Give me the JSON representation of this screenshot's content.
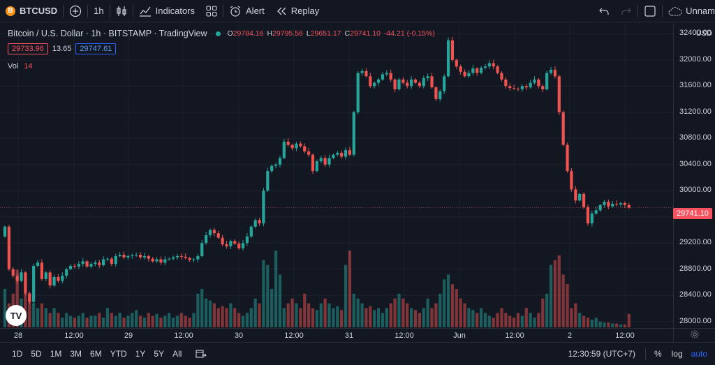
{
  "toolbar": {
    "symbol": "BTCUSD",
    "symbol_icon": "B",
    "interval": "1h",
    "indicators_label": "Indicators",
    "alert_label": "Alert",
    "replay_label": "Replay",
    "layout_name": "Unnam"
  },
  "legend": {
    "title": "Bitcoin / U.S. Dollar · 1h · BITSTAMP · TradingView",
    "o_key": "O",
    "o_val": "29784.16",
    "h_key": "H",
    "h_val": "29795.56",
    "l_key": "L",
    "l_val": "29651.17",
    "c_key": "C",
    "c_val": "29741.10",
    "change": "-44.21 (-0.15%)",
    "bid": "29733.96",
    "spread": "13.65",
    "ask": "29747.61",
    "vol_label": "Vol",
    "vol_value": "14"
  },
  "price_scale": {
    "currency": "USD",
    "ticks": [
      "32400.00",
      "32000.00",
      "31600.00",
      "31200.00",
      "30800.00",
      "30400.00",
      "30000.00",
      "29600.00",
      "29200.00",
      "28800.00",
      "28400.00",
      "28000.00"
    ],
    "current_price": "29741.10"
  },
  "time_scale": {
    "labels": [
      "28",
      "12:00",
      "29",
      "12:00",
      "30",
      "12:00",
      "31",
      "12:00",
      "Jun",
      "12:00",
      "2",
      "12:00"
    ]
  },
  "bottom_bar": {
    "ranges": [
      "1D",
      "5D",
      "1M",
      "3M",
      "6M",
      "YTD",
      "1Y",
      "5Y",
      "All"
    ],
    "clock": "12:30:59 (UTC+7)",
    "percent_label": "%",
    "log_label": "log",
    "auto_label": "auto"
  },
  "colors": {
    "up": "#26a69a",
    "down": "#ef5350",
    "background": "#131722",
    "grid": "#1e222d"
  },
  "chart_data": {
    "type": "candlestick",
    "x_start": "28 12:00",
    "interval": "1h",
    "ylim": [
      27900,
      32500
    ],
    "close": [
      29450,
      28800,
      28700,
      28620,
      28750,
      28430,
      28300,
      28850,
      28900,
      28650,
      28750,
      28550,
      28680,
      28620,
      28700,
      28800,
      28850,
      28840,
      28880,
      28920,
      28840,
      28880,
      28900,
      28860,
      28950,
      28960,
      28880,
      29000,
      29020,
      28980,
      29000,
      29010,
      29020,
      28980,
      29000,
      28960,
      28920,
      28950,
      28900,
      28950,
      28960,
      28980,
      29000,
      28990,
      28970,
      28940,
      28950,
      29000,
      29200,
      29320,
      29400,
      29350,
      29280,
      29180,
      29150,
      29230,
      29190,
      29120,
      29200,
      29300,
      29450,
      29550,
      29500,
      30000,
      30300,
      30380,
      30400,
      30500,
      30750,
      30700,
      30650,
      30720,
      30680,
      30600,
      30550,
      30300,
      30450,
      30500,
      30400,
      30500,
      30550,
      30580,
      30520,
      30620,
      30550,
      31200,
      31800,
      31830,
      31750,
      31600,
      31650,
      31700,
      31780,
      31800,
      31700,
      31550,
      31700,
      31650,
      31600,
      31700,
      31650,
      31600,
      31720,
      31750,
      31580,
      31400,
      31520,
      31750,
      32300,
      32000,
      31900,
      31820,
      31750,
      31800,
      31870,
      31800,
      31880,
      31900,
      31950,
      31900,
      31800,
      31700,
      31600,
      31570,
      31560,
      31550,
      31600,
      31580,
      31650,
      31700,
      31600,
      31550,
      31800,
      31850,
      31750,
      31200,
      30700,
      30300,
      30020,
      29850,
      29950,
      29750,
      29500,
      29650,
      29700,
      29780,
      29830,
      29760,
      29800,
      29790,
      29810,
      29780,
      29740
    ],
    "volume": [
      40,
      25,
      35,
      60,
      30,
      45,
      30,
      25,
      20,
      25,
      20,
      15,
      20,
      15,
      10,
      15,
      12,
      10,
      12,
      15,
      10,
      12,
      12,
      15,
      10,
      20,
      15,
      12,
      15,
      10,
      12,
      15,
      18,
      12,
      10,
      15,
      12,
      14,
      10,
      12,
      15,
      10,
      12,
      15,
      12,
      10,
      15,
      35,
      40,
      30,
      28,
      25,
      20,
      22,
      20,
      25,
      20,
      15,
      12,
      15,
      20,
      30,
      25,
      70,
      65,
      40,
      80,
      55,
      20,
      25,
      30,
      25,
      20,
      35,
      25,
      20,
      18,
      25,
      30,
      25,
      20,
      22,
      18,
      65,
      80,
      35,
      30,
      25,
      20,
      22,
      18,
      20,
      15,
      20,
      25,
      30,
      35,
      30,
      25,
      20,
      18,
      15,
      20,
      30,
      20,
      25,
      35,
      50,
      55,
      45,
      40,
      30,
      25,
      20,
      18,
      15,
      20,
      15,
      12,
      10,
      15,
      20,
      15,
      12,
      10,
      15,
      12,
      20,
      15,
      10,
      15,
      30,
      35,
      65,
      70,
      75,
      55,
      45,
      20,
      25,
      15,
      12,
      10,
      8,
      10,
      6,
      5,
      5,
      4,
      4,
      3,
      3,
      14
    ]
  }
}
